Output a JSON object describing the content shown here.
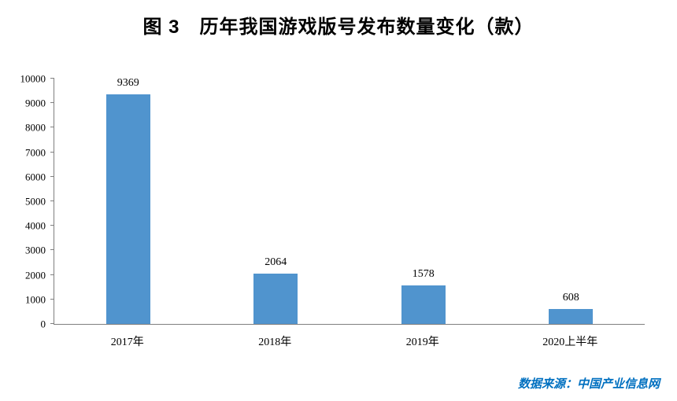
{
  "title": "图 3　历年我国游戏版号发布数量变化（款）",
  "source": "数据来源：中国产业信息网",
  "colors": {
    "bar": "#5094CE",
    "axis": "#7f7f7f",
    "source_text": "#0070C0",
    "title_text": "#000000"
  },
  "chart_data": {
    "type": "bar",
    "title": "图 3　历年我国游戏版号发布数量变化（款）",
    "categories": [
      "2017年",
      "2018年",
      "2019年",
      "2020上半年"
    ],
    "values": [
      9369,
      2064,
      1578,
      608
    ],
    "data_labels": [
      "9369",
      "2064",
      "1578",
      "608"
    ],
    "xlabel": "",
    "ylabel": "",
    "ylim": [
      0,
      10000
    ],
    "yticks": [
      0,
      1000,
      2000,
      3000,
      4000,
      5000,
      6000,
      7000,
      8000,
      9000,
      10000
    ],
    "grid": false,
    "legend": "none",
    "bar_color": "#5094CE",
    "annotation": "数据来源：中国产业信息网"
  }
}
